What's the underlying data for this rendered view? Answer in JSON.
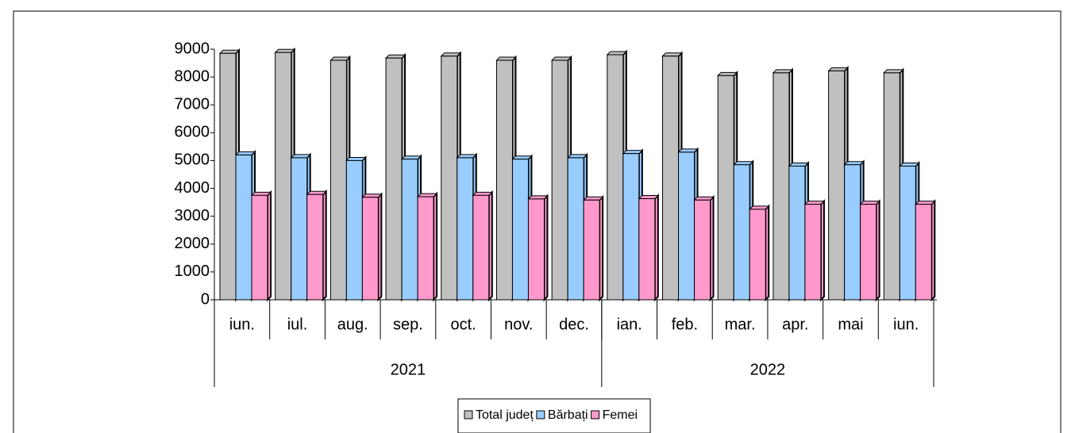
{
  "chart_data": {
    "type": "bar",
    "categories": [
      "iun.",
      "iul.",
      "aug.",
      "sep.",
      "oct.",
      "nov.",
      "dec.",
      "ian.",
      "feb.",
      "mar.",
      "apr.",
      "mai",
      "iun."
    ],
    "groups": [
      {
        "label": "2021",
        "span": 7
      },
      {
        "label": "2022",
        "span": 6
      }
    ],
    "series": [
      {
        "name": "Total județ",
        "color": "#c0c0c0",
        "values": [
          8850,
          8880,
          8600,
          8680,
          8750,
          8600,
          8600,
          8800,
          8750,
          8050,
          8150,
          8220,
          8150
        ]
      },
      {
        "name": "Bărbați",
        "color": "#99ccff",
        "values": [
          5200,
          5100,
          5000,
          5050,
          5100,
          5050,
          5100,
          5250,
          5300,
          4850,
          4800,
          4850,
          4800
        ]
      },
      {
        "name": "Femei",
        "color": "#ff99cc",
        "values": [
          3750,
          3780,
          3680,
          3700,
          3750,
          3620,
          3580,
          3630,
          3580,
          3250,
          3430,
          3430,
          3430
        ]
      }
    ],
    "ylim": [
      0,
      9000
    ],
    "yticks": [
      0,
      1000,
      2000,
      3000,
      4000,
      5000,
      6000,
      7000,
      8000,
      9000
    ],
    "grid": false,
    "legend": "bottom"
  }
}
